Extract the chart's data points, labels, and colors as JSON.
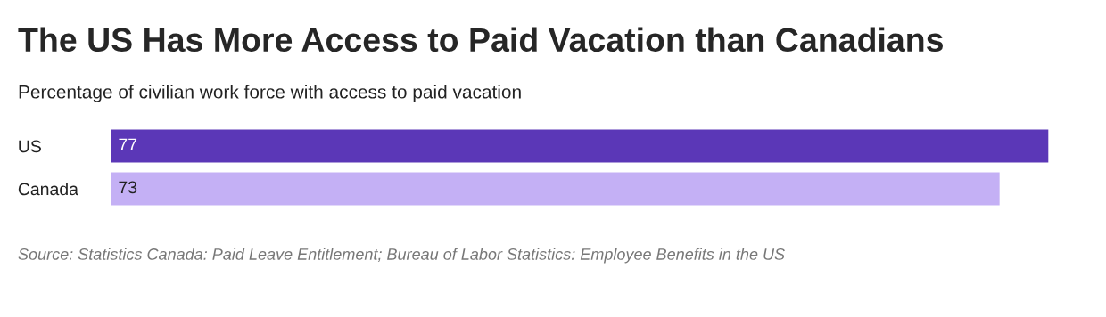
{
  "chart_data": {
    "type": "bar",
    "orientation": "horizontal",
    "title": "The US Has More Access to Paid Vacation than Canadians",
    "subtitle": "Percentage of civilian work force with access to paid vacation",
    "categories": [
      "US",
      "Canada"
    ],
    "values": [
      77,
      73
    ],
    "colors": [
      "#5b37b7",
      "#c4b0f5"
    ],
    "data_labels": true,
    "grid": false,
    "legend": false,
    "annotations": [
      "Source: Statistics Canada: Paid Leave Entitlement; Bureau of Labor Statistics: Employee Benefits in the US"
    ]
  }
}
